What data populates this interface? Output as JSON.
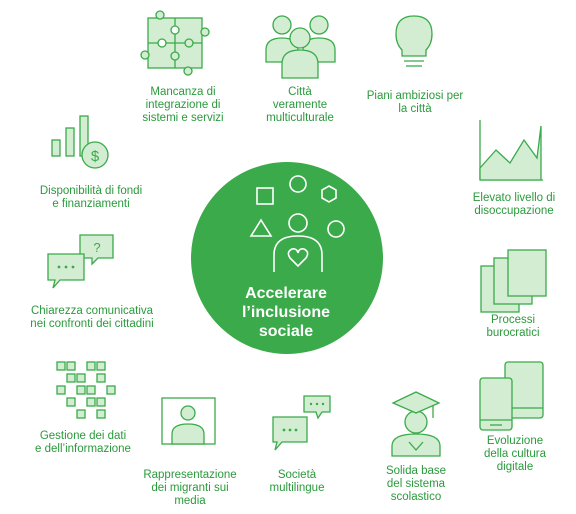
{
  "center": {
    "title_lines": [
      "Accelerare",
      "l’inclusione",
      "sociale"
    ]
  },
  "items": [
    {
      "id": "integrazione",
      "icon": "puzzle-icon",
      "lines": [
        "Mancanza di",
        "integrazione di",
        "sistemi e servizi"
      ]
    },
    {
      "id": "multiculturali",
      "icon": "people-group-icon",
      "lines": [
        "Città",
        "veramente",
        "multiculturale"
      ]
    },
    {
      "id": "piani",
      "icon": "lightbulb-icon",
      "lines": [
        "Piani ambiziosi per",
        "la città"
      ]
    },
    {
      "id": "disoccupazione",
      "icon": "area-chart-icon",
      "lines": [
        "Elevato livello di",
        "disoccupazione"
      ]
    },
    {
      "id": "burocratici",
      "icon": "document-stack-icon",
      "lines": [
        "Processi",
        "burocratici"
      ]
    },
    {
      "id": "digitale",
      "icon": "devices-icon",
      "lines": [
        "Evoluzione",
        "della cultura",
        "digitale"
      ]
    },
    {
      "id": "scolastico",
      "icon": "graduate-icon",
      "lines": [
        "Solida base",
        "del sistema",
        "scolastico"
      ]
    },
    {
      "id": "multilingue",
      "icon": "chat-bubbles-icon",
      "lines": [
        "Società",
        "multilingue"
      ]
    },
    {
      "id": "migranti",
      "icon": "portrait-frame-icon",
      "lines": [
        "Rappresentazione",
        "dei migranti sui",
        "media"
      ]
    },
    {
      "id": "dati",
      "icon": "data-grid-icon",
      "lines": [
        "Gestione dei dati",
        "e dell’informazione"
      ]
    },
    {
      "id": "comunicativa",
      "icon": "question-chat-icon",
      "lines": [
        "Chiarezza comunicativa",
        "nei confronti dei cittadini"
      ]
    },
    {
      "id": "fondi",
      "icon": "money-chart-icon",
      "lines": [
        "Disponibilità di fondi",
        "e finanziamenti"
      ]
    }
  ],
  "colors": {
    "accent": "#3aaa4a",
    "text": "#2a9a3c",
    "fill": "#d3edd3",
    "circle": "#3aaa4a"
  }
}
